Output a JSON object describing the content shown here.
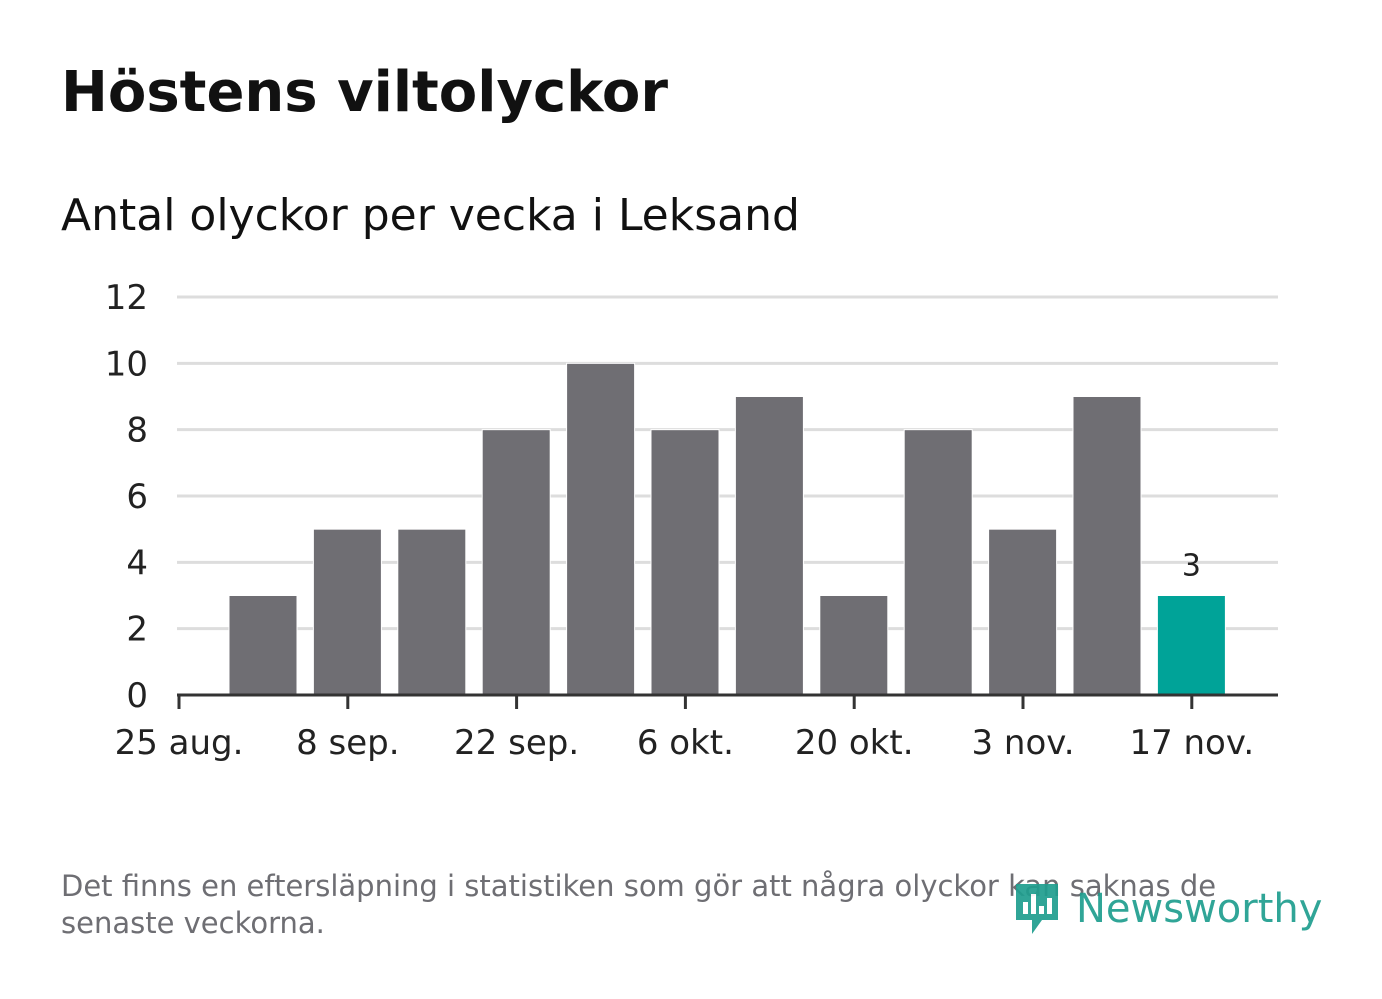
{
  "header": {
    "title": "Höstens viltolyckor",
    "subtitle": "Antal olyckor per vecka i Leksand"
  },
  "chart_data": {
    "type": "bar",
    "title": "Höstens viltolyckor",
    "subtitle": "Antal olyckor per vecka i Leksand",
    "xlabel": "",
    "ylabel": "",
    "ylim": [
      0,
      12
    ],
    "yticks": [
      "0",
      "2",
      "4",
      "6",
      "8",
      "10",
      "12"
    ],
    "xticks": [
      "25 aug.",
      "8 sep.",
      "22 sep.",
      "6 okt.",
      "20 okt.",
      "3 nov.",
      "17 nov."
    ],
    "values": [
      3,
      5,
      5,
      8,
      10,
      8,
      9,
      3,
      8,
      5,
      9,
      3
    ],
    "highlight_index": 11,
    "highlight_label": "3",
    "bar_color": "#6f6e73",
    "highlight_color": "#00a398",
    "grid": true
  },
  "footnote": "Det finns en eftersläpning i statistiken som gör att några olyckor kan saknas de senaste veckorna.",
  "logo": {
    "text": "Newsworthy",
    "icon": "newsworthy-logo-icon",
    "color": "#1f9e8f"
  }
}
